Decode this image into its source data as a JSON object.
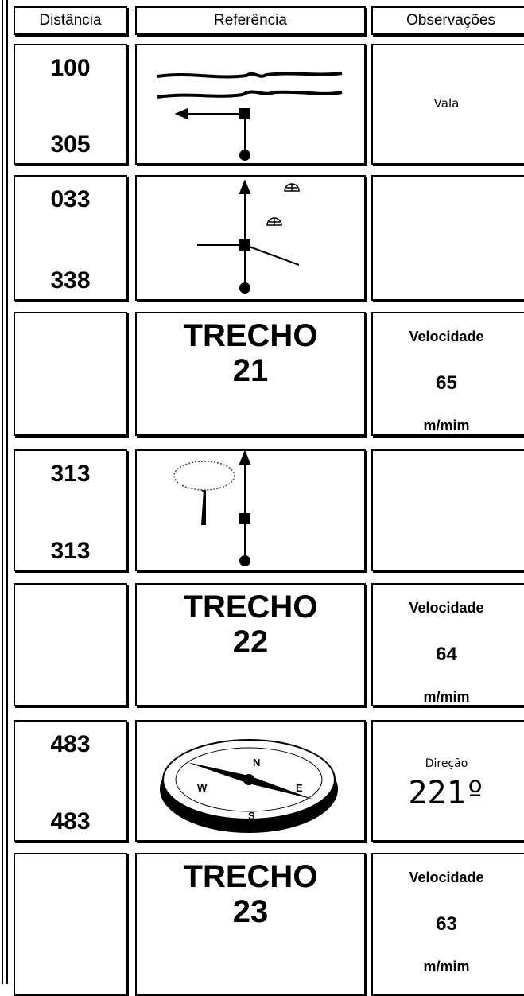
{
  "table": {
    "header": [
      "Distância",
      "Referência",
      "Observações"
    ],
    "rows": [
      {
        "distance": [
          "100",
          "305"
        ],
        "observations": [
          "Vala"
        ]
      },
      {
        "distance": [
          "033",
          "338"
        ]
      },
      {
        "reference": [
          "TRECHO",
          "21"
        ],
        "observations": [
          "Velocidade",
          "65",
          "m/mim"
        ]
      },
      {
        "distance": [
          "313",
          "313"
        ]
      },
      {
        "reference": [
          "TRECHO",
          "22"
        ],
        "observations": [
          "Velocidade",
          "64",
          "m/mim"
        ]
      },
      {
        "distance": [
          "483",
          "483"
        ],
        "observations": [
          "Direção",
          "221º"
        ]
      },
      {
        "reference": [
          "TRECHO",
          "23"
        ],
        "observations": [
          "Velocidade",
          "63",
          "m/mim"
        ]
      }
    ]
  }
}
